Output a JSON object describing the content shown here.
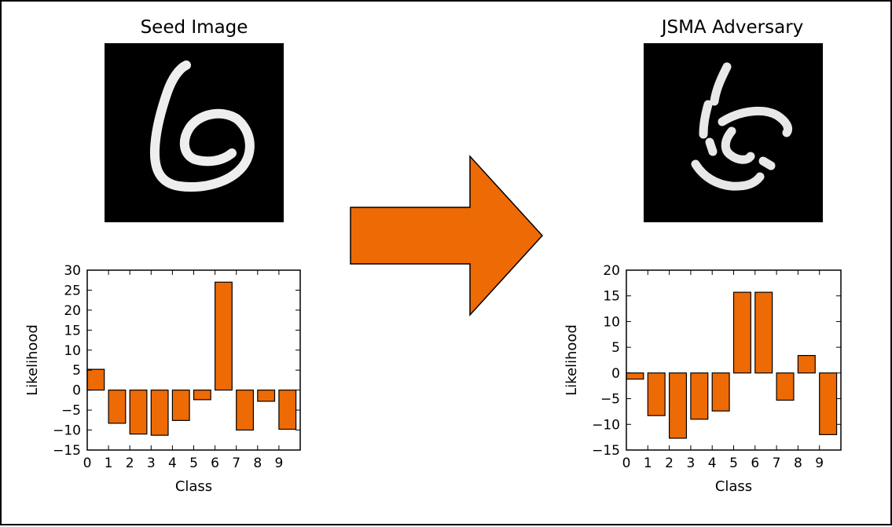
{
  "colors": {
    "bar": "#ee6a04",
    "bar_edge": "#000000",
    "arrow": "#ee6a04",
    "image_bg": "#000000"
  },
  "left": {
    "title": "Seed Image"
  },
  "right": {
    "title": "JSMA Adversary"
  },
  "arrow_icon": "right-arrow-icon",
  "chart_data": [
    {
      "type": "bar",
      "categories": [
        "0",
        "1",
        "2",
        "3",
        "4",
        "5",
        "6",
        "7",
        "8",
        "9"
      ],
      "values": [
        5.2,
        -8.3,
        -11.0,
        -11.3,
        -7.6,
        -2.4,
        27.0,
        -10.0,
        -2.8,
        -9.8
      ],
      "xlabel": "Class",
      "ylabel": "Likelihood",
      "ylim": [
        -15,
        30
      ],
      "yticks": [
        "30",
        "25",
        "20",
        "15",
        "10",
        "5",
        "0",
        "−5",
        "−10",
        "−15"
      ],
      "ytick_values": [
        30,
        25,
        20,
        15,
        10,
        5,
        0,
        -5,
        -10,
        -15
      ],
      "xlim": [
        0,
        10
      ]
    },
    {
      "type": "bar",
      "categories": [
        "0",
        "1",
        "2",
        "3",
        "4",
        "5",
        "6",
        "7",
        "8",
        "9"
      ],
      "values": [
        -1.2,
        -8.3,
        -12.7,
        -9.0,
        -7.4,
        15.7,
        15.7,
        -5.3,
        3.4,
        -12.0
      ],
      "xlabel": "Class",
      "ylabel": "Likelihood",
      "ylim": [
        -15,
        20
      ],
      "yticks": [
        "20",
        "15",
        "10",
        "5",
        "0",
        "−5",
        "−10",
        "−15"
      ],
      "ytick_values": [
        20,
        15,
        10,
        5,
        0,
        -5,
        -10,
        -15
      ],
      "xlim": [
        0,
        10
      ]
    }
  ]
}
